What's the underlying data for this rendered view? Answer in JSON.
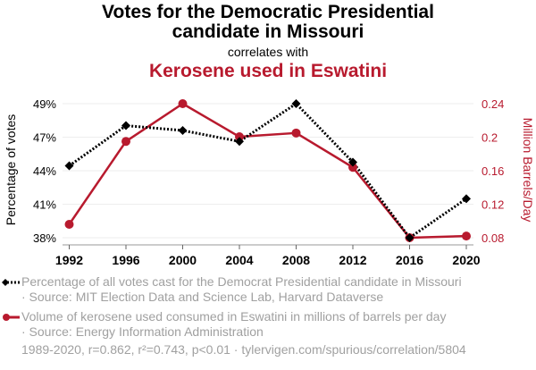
{
  "header": {
    "title_line1": "Votes for the Democratic Presidential",
    "title_line2": "candidate in Missouri",
    "subtitle": "correlates with",
    "title2": "Kerosene used in Eswatini"
  },
  "colors": {
    "series1": "#000000",
    "series2": "#b81a2e",
    "muted_text": "#a0a0a0",
    "grid": "#eeeeee"
  },
  "chart_data": {
    "type": "line",
    "title": "Votes for the Democratic Presidential candidate in Missouri correlates with Kerosene used in Eswatini",
    "x": [
      1992,
      1996,
      2000,
      2004,
      2008,
      2012,
      2016,
      2020
    ],
    "xticks": [
      "1992",
      "1996",
      "2000",
      "2004",
      "2008",
      "2012",
      "2016",
      "2020"
    ],
    "ylabel_left": "Percentage of votes",
    "ylabel_right": "Million Barrels/Day",
    "yticks_left": [
      "49%",
      "47%",
      "44%",
      "41%",
      "38%"
    ],
    "yticks_right": [
      "0.24",
      "0.2",
      "0.16",
      "0.12",
      "0.08"
    ],
    "ylim_left": [
      38,
      49
    ],
    "ylim_right": [
      0.08,
      0.24
    ],
    "grid": true,
    "series": [
      {
        "name": "Percentage of all votes cast for the Democrat Presidential candidate in Missouri",
        "axis": "left",
        "style": "dotted",
        "marker": "diamond",
        "values": [
          43.9,
          47.2,
          46.8,
          45.9,
          49.0,
          44.2,
          38.0,
          41.2
        ]
      },
      {
        "name": "Volume of kerosene used consumed in Eswatini in millions of barrels per day",
        "axis": "right",
        "style": "solid",
        "marker": "circle",
        "values": [
          0.096,
          0.195,
          0.24,
          0.2005,
          0.205,
          0.164,
          0.08,
          0.082
        ]
      }
    ]
  },
  "legend": {
    "items": [
      {
        "line1": "Percentage of all votes cast for the Democrat Presidential candidate in Missouri",
        "line2": "· Source: MIT Election Data and Science Lab, Harvard Dataverse"
      },
      {
        "line1": "Volume of kerosene used consumed in Eswatini in millions of barrels per day",
        "line2": "· Source: Energy Information Administration"
      }
    ]
  },
  "footer": "1989-2020, r=0.862, r²=0.743, p<0.01 · tylervigen.com/spurious/correlation/5804"
}
